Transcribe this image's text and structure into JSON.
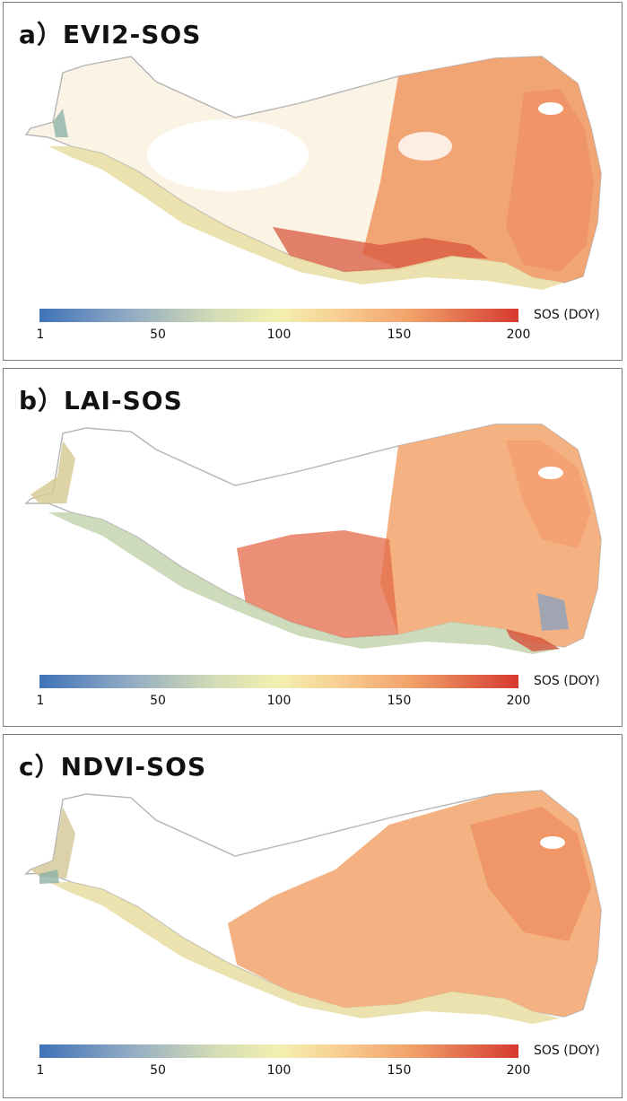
{
  "panels": [
    {
      "label": "a）",
      "name": "EVI2-SOS"
    },
    {
      "label": "b）",
      "name": "LAI-SOS"
    },
    {
      "label": "c）",
      "name": "NDVI-SOS"
    }
  ],
  "colorbar": {
    "ticks": [
      "1",
      "50",
      "100",
      "150",
      "200"
    ],
    "unit_label": "SOS (DOY)",
    "colors": [
      "#3f73b8",
      "#8fa9c4",
      "#d5ddb5",
      "#f3f0b0",
      "#f8d094",
      "#f1a069",
      "#de5f45",
      "#d73a2f"
    ]
  },
  "colors": {
    "boundary": "#b4b4b4",
    "low": "#7fa3c6",
    "mid": "#eed9a0",
    "high": "#ee9a6b",
    "very_high": "#d6523a"
  }
}
